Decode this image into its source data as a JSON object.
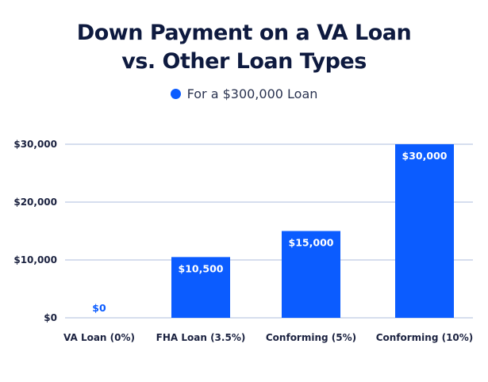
{
  "chart_data": {
    "type": "bar",
    "title_line1": "Down Payment on a VA Loan",
    "title_line2": "vs. Other Loan Types",
    "legend": "For a $300,000 Loan",
    "categories": [
      "VA Loan (0%)",
      "FHA Loan (3.5%)",
      "Conforming (5%)",
      "Conforming (10%)"
    ],
    "values": [
      0,
      10500,
      15000,
      30000
    ],
    "value_labels": [
      "$0",
      "$10,500",
      "$15,000",
      "$30,000"
    ],
    "y_ticks": [
      0,
      10000,
      20000,
      30000
    ],
    "y_tick_labels": [
      "$0",
      "$10,000",
      "$20,000",
      "$30,000"
    ],
    "ylim": [
      0,
      30000
    ],
    "grid": true,
    "legend_position": "top-center",
    "colors": {
      "bar": "#0b5cff",
      "grid": "#c9d4e8",
      "title": "#0e1a3f"
    }
  }
}
